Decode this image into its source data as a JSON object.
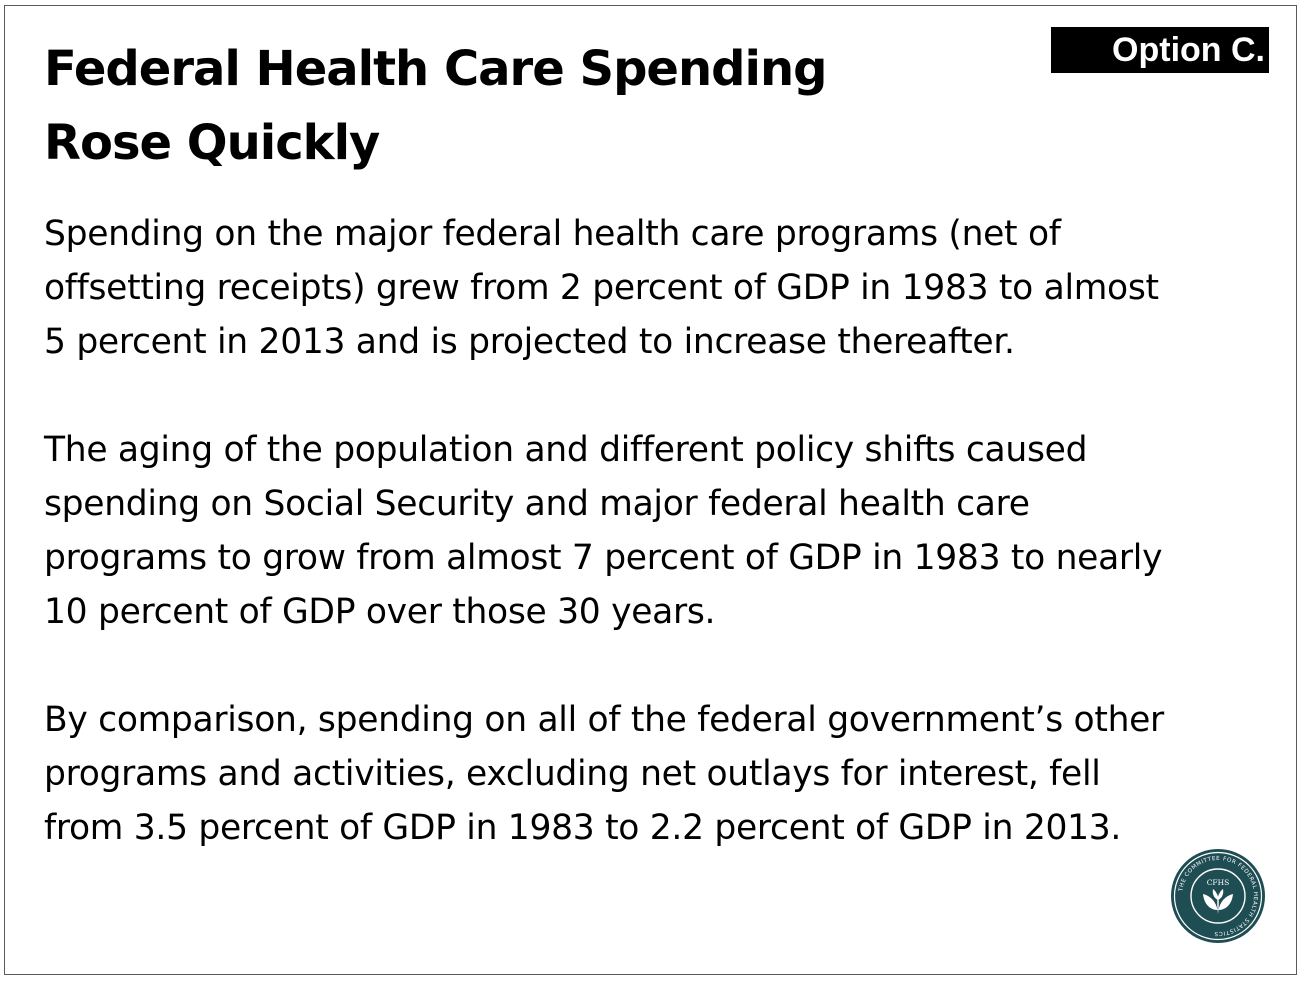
{
  "slide": {
    "title_lines": [
      "Federal Health Care Spending",
      "Rose Quickly"
    ],
    "option_label": "Option C.",
    "paragraphs": [
      {
        "lines": [
          "Spending on the major federal health care programs (net of",
          "offsetting receipts) grew from 2 percent of GDP in 1983 to almost",
          "5 percent in 2013 and is projected to increase thereafter."
        ]
      },
      {
        "lines": [
          "The aging of the population and different policy shifts caused",
          "spending on Social Security and major federal health care",
          "programs to grow from almost 7 percent of GDP in 1983 to nearly",
          "10 percent of GDP over those 30 years."
        ]
      },
      {
        "lines": [
          "By comparison, spending on all of the federal government’s other",
          "programs and activities, excluding net outlays for interest, fell",
          "from 3.5 percent of GDP in 1983 to 2.2 percent of GDP in 2013."
        ]
      }
    ],
    "logo": {
      "ring_text": "THE COMMITTEE FOR FEDERAL HEALTH STATISTICS",
      "center_text": "CFHS",
      "color": "#1f4d54",
      "icon": "plant-seal-icon"
    }
  }
}
